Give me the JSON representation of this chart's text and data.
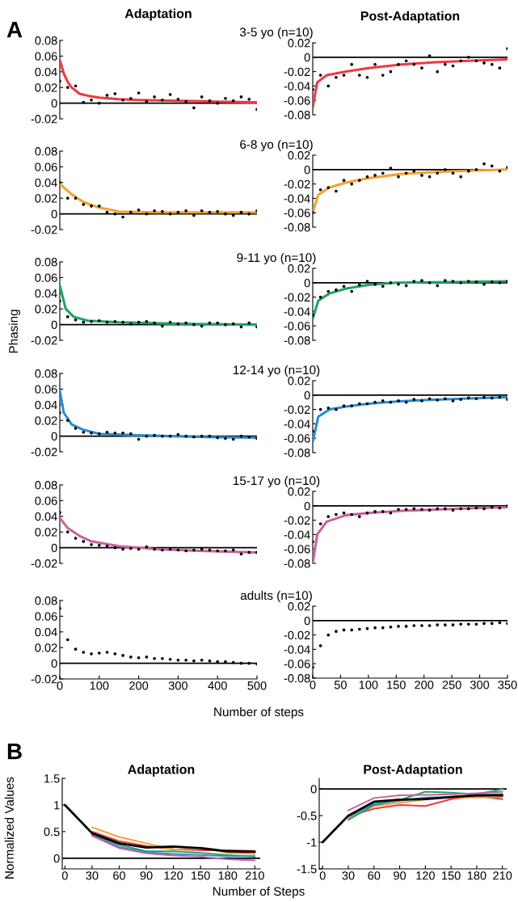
{
  "chart_data": [
    {
      "type": "scatter",
      "title": "Adaptation",
      "annotations": [
        "A"
      ],
      "xlim": [
        0,
        500
      ],
      "ylim": [
        -0.02,
        0.08
      ],
      "yticks": [
        -0.02,
        0,
        0.02,
        0.04,
        0.06,
        0.08
      ],
      "tick_labels": "y",
      "ref_lines": [
        {
          "axis": "y",
          "value": 0,
          "color": "#000000"
        }
      ],
      "series": [
        {
          "type": "line",
          "color": "#ee3a43",
          "x": [
            0,
            10,
            20,
            30,
            50,
            75,
            100,
            150,
            200,
            300,
            400,
            500
          ],
          "values": [
            0.055,
            0.038,
            0.027,
            0.02,
            0.012,
            0.009,
            0.007,
            0.005,
            0.004,
            0.003,
            0.002,
            0.001
          ]
        },
        {
          "type": "scatter",
          "color": "#000000",
          "x": [
            0,
            20,
            40,
            60,
            80,
            100,
            120,
            140,
            160,
            180,
            200,
            220,
            240,
            260,
            280,
            300,
            320,
            340,
            360,
            380,
            400,
            420,
            440,
            460,
            480,
            500
          ],
          "values": [
            0.028,
            0.02,
            0.022,
            0.001,
            0.004,
            0.0,
            0.01,
            0.012,
            0.004,
            0.006,
            0.013,
            0.002,
            0.008,
            0.004,
            0.011,
            0.005,
            0.002,
            -0.006,
            0.008,
            0.003,
            0.0,
            0.006,
            0.003,
            0.008,
            0.005,
            -0.008
          ]
        }
      ]
    },
    {
      "type": "scatter",
      "title": "Post-Adaptation",
      "subtitle": "3-5 yo (n=10)",
      "xlim": [
        0,
        350
      ],
      "ylim": [
        -0.08,
        0.02
      ],
      "yticks": [
        -0.08,
        -0.06,
        -0.04,
        -0.02,
        0,
        0.02
      ],
      "tick_labels": "y",
      "ref_lines": [
        {
          "axis": "y",
          "value": 0,
          "color": "#000000"
        }
      ],
      "series": [
        {
          "type": "line",
          "color": "#ee3a43",
          "x": [
            0,
            8,
            25,
            60,
            100,
            160,
            220,
            280,
            350
          ],
          "values": [
            -0.07,
            -0.035,
            -0.025,
            -0.02,
            -0.015,
            -0.01,
            -0.007,
            -0.005,
            -0.003
          ]
        },
        {
          "type": "scatter",
          "color": "#000000",
          "x": [
            0,
            14,
            28,
            42,
            56,
            70,
            84,
            98,
            112,
            126,
            140,
            154,
            168,
            182,
            196,
            210,
            224,
            238,
            252,
            266,
            280,
            294,
            308,
            322,
            336,
            350
          ],
          "values": [
            -0.045,
            -0.025,
            -0.04,
            -0.028,
            -0.025,
            -0.01,
            -0.025,
            -0.028,
            -0.01,
            -0.025,
            -0.02,
            -0.01,
            -0.005,
            -0.01,
            -0.015,
            0.002,
            -0.02,
            -0.01,
            -0.012,
            -0.005,
            0.0,
            -0.005,
            -0.008,
            -0.01,
            -0.015,
            0.012
          ]
        }
      ]
    },
    {
      "type": "scatter",
      "xlim": [
        0,
        500
      ],
      "ylim": [
        -0.02,
        0.08
      ],
      "yticks": [
        -0.02,
        0,
        0.02,
        0.04,
        0.06,
        0.08
      ],
      "tick_labels": "y",
      "ref_lines": [
        {
          "axis": "y",
          "value": 0,
          "color": "#000000"
        }
      ],
      "series": [
        {
          "type": "line",
          "color": "#f5a031",
          "x": [
            0,
            30,
            60,
            100,
            150,
            250,
            500
          ],
          "values": [
            0.038,
            0.025,
            0.015,
            0.008,
            0.003,
            0.002,
            0.002
          ]
        },
        {
          "type": "scatter",
          "color": "#000000",
          "x": [
            0,
            20,
            40,
            60,
            80,
            100,
            120,
            140,
            160,
            180,
            200,
            220,
            240,
            260,
            280,
            300,
            320,
            340,
            360,
            380,
            400,
            420,
            440,
            460,
            480,
            500
          ],
          "values": [
            0.04,
            0.02,
            0.02,
            0.012,
            0.01,
            0.01,
            0.002,
            0.0,
            -0.004,
            0.002,
            0.005,
            0.0,
            0.004,
            0.003,
            0.0,
            0.002,
            0.004,
            -0.002,
            0.004,
            0.002,
            0.003,
            0.0,
            -0.002,
            0.002,
            0.0,
            0.004
          ]
        }
      ]
    },
    {
      "type": "scatter",
      "subtitle": "6-8 yo (n=10)",
      "xlim": [
        0,
        350
      ],
      "ylim": [
        -0.08,
        0.02
      ],
      "yticks": [
        -0.08,
        -0.06,
        -0.04,
        -0.02,
        0,
        0.02
      ],
      "tick_labels": "y",
      "ref_lines": [
        {
          "axis": "y",
          "value": 0,
          "color": "#000000"
        }
      ],
      "series": [
        {
          "type": "line",
          "color": "#f5a031",
          "x": [
            0,
            10,
            30,
            60,
            100,
            160,
            230,
            300,
            350
          ],
          "values": [
            -0.06,
            -0.035,
            -0.025,
            -0.018,
            -0.012,
            -0.006,
            -0.003,
            -0.001,
            0
          ]
        },
        {
          "type": "scatter",
          "color": "#000000",
          "x": [
            0,
            14,
            28,
            42,
            56,
            70,
            84,
            98,
            112,
            126,
            140,
            154,
            168,
            182,
            196,
            210,
            224,
            238,
            252,
            266,
            280,
            294,
            308,
            322,
            336,
            350
          ],
          "values": [
            -0.06,
            -0.028,
            -0.025,
            -0.03,
            -0.015,
            -0.02,
            -0.015,
            -0.01,
            -0.008,
            -0.005,
            0.002,
            -0.01,
            -0.005,
            -0.002,
            -0.008,
            -0.01,
            -0.005,
            0.0,
            -0.005,
            -0.01,
            -0.002,
            0.0,
            0.008,
            0.005,
            -0.002,
            0.003
          ]
        }
      ]
    },
    {
      "type": "scatter",
      "xlim": [
        0,
        500
      ],
      "ylim": [
        -0.02,
        0.08
      ],
      "yticks": [
        -0.02,
        0,
        0.02,
        0.04,
        0.06,
        0.08
      ],
      "tick_labels": "y",
      "ref_lines": [
        {
          "axis": "y",
          "value": 0,
          "color": "#000000"
        }
      ],
      "series": [
        {
          "type": "line",
          "color": "#1ea462",
          "x": [
            0,
            15,
            35,
            70,
            150,
            300,
            500
          ],
          "values": [
            0.05,
            0.02,
            0.01,
            0.005,
            0.003,
            0.001,
            0
          ]
        },
        {
          "type": "scatter",
          "color": "#000000",
          "x": [
            0,
            20,
            40,
            60,
            80,
            100,
            120,
            140,
            160,
            180,
            200,
            220,
            240,
            260,
            280,
            300,
            320,
            340,
            360,
            380,
            400,
            420,
            440,
            460,
            480,
            500
          ],
          "values": [
            0.03,
            0.01,
            0.006,
            0.003,
            0.004,
            0.005,
            0.003,
            0.004,
            0.003,
            0.001,
            0.003,
            0.004,
            0.002,
            -0.002,
            0.003,
            0.001,
            0.002,
            0.0,
            -0.002,
            0.002,
            0.002,
            0.0,
            0.001,
            -0.003,
            0.002,
            -0.003
          ]
        }
      ]
    },
    {
      "type": "scatter",
      "subtitle": "9-11 yo (n=10)",
      "xlim": [
        0,
        350
      ],
      "ylim": [
        -0.08,
        0.02
      ],
      "yticks": [
        -0.08,
        -0.06,
        -0.04,
        -0.02,
        0,
        0.02
      ],
      "tick_labels": "y",
      "ref_lines": [
        {
          "axis": "y",
          "value": 0,
          "color": "#000000"
        }
      ],
      "series": [
        {
          "type": "line",
          "color": "#1ea462",
          "x": [
            0,
            10,
            30,
            60,
            100,
            150,
            250,
            350
          ],
          "values": [
            -0.05,
            -0.025,
            -0.015,
            -0.008,
            -0.003,
            0,
            0.001,
            0.002
          ]
        },
        {
          "type": "scatter",
          "color": "#000000",
          "x": [
            0,
            14,
            28,
            42,
            56,
            70,
            84,
            98,
            112,
            126,
            140,
            154,
            168,
            182,
            196,
            210,
            224,
            238,
            252,
            266,
            280,
            294,
            308,
            322,
            336,
            350
          ],
          "values": [
            -0.045,
            -0.02,
            -0.012,
            -0.01,
            -0.005,
            -0.012,
            -0.003,
            0.002,
            -0.002,
            -0.005,
            0.0,
            -0.002,
            -0.004,
            0.002,
            0.003,
            0.0,
            -0.004,
            0.003,
            0.002,
            0.0,
            0.002,
            0.001,
            -0.002,
            0.001,
            0.0,
            0.002
          ]
        }
      ]
    },
    {
      "type": "scatter",
      "ylabel": "Phasing",
      "xlim": [
        0,
        500
      ],
      "ylim": [
        -0.02,
        0.08
      ],
      "yticks": [
        -0.02,
        0,
        0.02,
        0.04,
        0.06,
        0.08
      ],
      "tick_labels": "y",
      "ref_lines": [
        {
          "axis": "y",
          "value": 0,
          "color": "#000000"
        }
      ],
      "series": [
        {
          "type": "line",
          "color": "#2a8ccc",
          "x": [
            0,
            10,
            30,
            60,
            100,
            200,
            350,
            500
          ],
          "values": [
            0.058,
            0.03,
            0.015,
            0.008,
            0.003,
            0.001,
            -0.001,
            -0.002
          ]
        },
        {
          "type": "scatter",
          "color": "#000000",
          "x": [
            0,
            20,
            40,
            60,
            80,
            100,
            120,
            140,
            160,
            180,
            200,
            220,
            240,
            260,
            280,
            300,
            320,
            340,
            360,
            380,
            400,
            420,
            440,
            460,
            480,
            500
          ],
          "values": [
            0.03,
            0.02,
            0.01,
            0.005,
            0.004,
            0.003,
            0.005,
            0.004,
            0.004,
            0.003,
            -0.004,
            0.0,
            0.001,
            0.0,
            0.0,
            0.002,
            0.0,
            -0.001,
            0.0,
            0.0,
            -0.002,
            -0.003,
            -0.004,
            0.0,
            -0.001,
            -0.003
          ]
        }
      ]
    },
    {
      "type": "scatter",
      "subtitle": "12-14 yo (n=10)",
      "xlim": [
        0,
        350
      ],
      "ylim": [
        -0.08,
        0.02
      ],
      "yticks": [
        -0.08,
        -0.06,
        -0.04,
        -0.02,
        0,
        0.02
      ],
      "tick_labels": "y",
      "ref_lines": [
        {
          "axis": "y",
          "value": 0,
          "color": "#000000"
        }
      ],
      "series": [
        {
          "type": "line",
          "color": "#2a8ccc",
          "x": [
            0,
            10,
            30,
            60,
            100,
            150,
            200,
            270,
            350
          ],
          "values": [
            -0.065,
            -0.03,
            -0.02,
            -0.016,
            -0.012,
            -0.009,
            -0.007,
            -0.005,
            -0.003
          ]
        },
        {
          "type": "scatter",
          "color": "#000000",
          "x": [
            0,
            14,
            28,
            42,
            56,
            70,
            84,
            98,
            112,
            126,
            140,
            154,
            168,
            182,
            196,
            210,
            224,
            238,
            252,
            266,
            280,
            294,
            308,
            322,
            336,
            350
          ],
          "values": [
            -0.05,
            -0.02,
            -0.018,
            -0.02,
            -0.015,
            -0.015,
            -0.012,
            -0.012,
            -0.01,
            -0.008,
            -0.01,
            -0.008,
            -0.01,
            -0.006,
            -0.008,
            -0.005,
            -0.007,
            -0.005,
            -0.008,
            -0.006,
            -0.004,
            -0.005,
            -0.003,
            -0.004,
            -0.003,
            -0.006
          ]
        }
      ]
    },
    {
      "type": "scatter",
      "xlim": [
        0,
        500
      ],
      "ylim": [
        -0.02,
        0.08
      ],
      "yticks": [
        -0.02,
        0,
        0.02,
        0.04,
        0.06,
        0.08
      ],
      "tick_labels": "y",
      "ref_lines": [
        {
          "axis": "y",
          "value": 0,
          "color": "#000000"
        }
      ],
      "series": [
        {
          "type": "line",
          "color": "#c9629c",
          "x": [
            0,
            20,
            50,
            80,
            150,
            250,
            350,
            500
          ],
          "values": [
            0.038,
            0.025,
            0.015,
            0.008,
            0.002,
            -0.002,
            -0.004,
            -0.006
          ]
        },
        {
          "type": "scatter",
          "color": "#000000",
          "x": [
            0,
            20,
            40,
            60,
            80,
            100,
            120,
            140,
            160,
            180,
            200,
            220,
            240,
            260,
            280,
            300,
            320,
            340,
            360,
            380,
            400,
            420,
            440,
            460,
            480,
            500
          ],
          "values": [
            0.045,
            0.02,
            0.012,
            0.008,
            0.004,
            0.003,
            0.002,
            0.0,
            -0.002,
            -0.001,
            -0.002,
            0.001,
            -0.002,
            -0.003,
            -0.002,
            -0.003,
            -0.004,
            -0.003,
            -0.002,
            -0.003,
            -0.004,
            -0.004,
            -0.003,
            -0.008,
            -0.006,
            -0.006
          ]
        }
      ]
    },
    {
      "type": "scatter",
      "subtitle": "15-17 yo (n=10)",
      "xlim": [
        0,
        350
      ],
      "ylim": [
        -0.08,
        0.02
      ],
      "yticks": [
        -0.08,
        -0.06,
        -0.04,
        -0.02,
        0,
        0.02
      ],
      "tick_labels": "y",
      "ref_lines": [
        {
          "axis": "y",
          "value": 0,
          "color": "#000000"
        }
      ],
      "series": [
        {
          "type": "line",
          "color": "#c9629c",
          "x": [
            0,
            8,
            25,
            60,
            100,
            160,
            230,
            300,
            350
          ],
          "values": [
            -0.08,
            -0.04,
            -0.022,
            -0.013,
            -0.01,
            -0.007,
            -0.005,
            -0.003,
            -0.002
          ]
        },
        {
          "type": "scatter",
          "color": "#000000",
          "x": [
            0,
            14,
            28,
            42,
            56,
            70,
            84,
            98,
            112,
            126,
            140,
            154,
            168,
            182,
            196,
            210,
            224,
            238,
            252,
            266,
            280,
            294,
            308,
            322,
            336,
            350
          ],
          "values": [
            -0.05,
            -0.025,
            -0.015,
            -0.012,
            -0.01,
            -0.012,
            -0.015,
            -0.01,
            -0.008,
            -0.008,
            -0.01,
            -0.005,
            -0.005,
            -0.004,
            -0.005,
            -0.006,
            -0.004,
            -0.004,
            -0.006,
            -0.004,
            -0.004,
            -0.003,
            -0.004,
            -0.002,
            -0.003,
            0.0
          ]
        }
      ]
    },
    {
      "type": "scatter",
      "xlabel": "Number of steps",
      "xlim": [
        0,
        500
      ],
      "xticks": [
        0,
        100,
        200,
        300,
        400,
        500
      ],
      "ylim": [
        -0.02,
        0.08
      ],
      "yticks": [
        -0.02,
        0,
        0.02,
        0.04,
        0.06,
        0.08
      ],
      "ref_lines": [
        {
          "axis": "y",
          "value": 0,
          "color": "#000000"
        }
      ],
      "series": [
        {
          "type": "scatter",
          "color": "#000000",
          "x": [
            0,
            20,
            40,
            60,
            80,
            100,
            120,
            140,
            160,
            180,
            200,
            220,
            240,
            260,
            280,
            300,
            320,
            340,
            360,
            380,
            400,
            420,
            440,
            460,
            480,
            500
          ],
          "values": [
            0.07,
            0.03,
            0.018,
            0.014,
            0.012,
            0.013,
            0.014,
            0.012,
            0.01,
            0.008,
            0.007,
            0.008,
            0.006,
            0.006,
            0.005,
            0.004,
            0.004,
            0.003,
            0.004,
            0.003,
            0.002,
            0.002,
            0.001,
            0.0,
            0.0,
            -0.001
          ]
        }
      ]
    },
    {
      "type": "scatter",
      "subtitle": "adults (n=10)",
      "xlim": [
        0,
        350
      ],
      "xticks": [
        0,
        50,
        100,
        150,
        200,
        250,
        300,
        350
      ],
      "ylim": [
        -0.08,
        0.02
      ],
      "yticks": [
        -0.08,
        -0.06,
        -0.04,
        -0.02,
        0,
        0.02
      ],
      "ref_lines": [
        {
          "axis": "y",
          "value": 0,
          "color": "#000000"
        }
      ],
      "series": [
        {
          "type": "scatter",
          "color": "#000000",
          "x": [
            0,
            14,
            28,
            42,
            56,
            70,
            84,
            98,
            112,
            126,
            140,
            154,
            168,
            182,
            196,
            210,
            224,
            238,
            252,
            266,
            280,
            294,
            308,
            322,
            336,
            350
          ],
          "values": [
            -0.065,
            -0.035,
            -0.02,
            -0.015,
            -0.013,
            -0.013,
            -0.012,
            -0.011,
            -0.01,
            -0.01,
            -0.009,
            -0.008,
            -0.008,
            -0.007,
            -0.007,
            -0.007,
            -0.006,
            -0.006,
            -0.006,
            -0.005,
            -0.005,
            -0.005,
            -0.004,
            -0.004,
            -0.003,
            -0.004
          ]
        }
      ]
    },
    {
      "type": "line",
      "title": "Adaptation",
      "annotations": [
        "B"
      ],
      "xlabel": "Number of Steps",
      "ylabel": "Normalized Values",
      "x": [
        0,
        30,
        60,
        90,
        120,
        150,
        180,
        210
      ],
      "xlim": [
        -3,
        216
      ],
      "xticks": [
        0,
        30,
        60,
        90,
        120,
        150,
        180,
        210
      ],
      "ylim": [
        -0.2,
        1.5
      ],
      "yticks": [
        0,
        0.5,
        1,
        1.5
      ],
      "ref_lines": [
        {
          "axis": "y",
          "value": 0,
          "color": "#000000"
        }
      ],
      "series": [
        {
          "color": "#ee3a43",
          "values": [
            null,
            0.5,
            0.32,
            0.23,
            0.17,
            0.15,
            0.15,
            0.14
          ]
        },
        {
          "color": "#f5a031",
          "values": [
            null,
            0.58,
            0.4,
            0.28,
            0.16,
            0.2,
            0.1,
            0.08
          ]
        },
        {
          "color": "#1ea462",
          "values": [
            null,
            0.45,
            0.25,
            0.13,
            0.13,
            0.1,
            0.06,
            0.03
          ]
        },
        {
          "color": "#2a8ccc",
          "values": [
            null,
            0.44,
            0.21,
            0.11,
            0.08,
            0.06,
            0.04,
            0.04
          ]
        },
        {
          "color": "#c9629c",
          "values": [
            null,
            0.42,
            0.19,
            0.09,
            0.05,
            0.03,
            -0.02,
            -0.04
          ]
        },
        {
          "color": "#000000",
          "values": [
            1,
            0.47,
            0.28,
            0.2,
            0.22,
            0.19,
            0.13,
            0.12
          ]
        }
      ]
    },
    {
      "type": "line",
      "title": "Post-Adaptation",
      "x": [
        0,
        30,
        60,
        90,
        120,
        150,
        180,
        210
      ],
      "xlim": [
        -4,
        215
      ],
      "xticks": [
        0,
        30,
        60,
        90,
        120,
        150,
        180,
        210
      ],
      "ylim": [
        -1.5,
        0.2
      ],
      "yticks": [
        -1.5,
        -1,
        -0.5,
        0
      ],
      "ref_lines": [
        {
          "axis": "y",
          "value": 0,
          "color": "#000000"
        }
      ],
      "series": [
        {
          "color": "#ee3a43",
          "values": [
            null,
            -0.52,
            -0.37,
            -0.3,
            -0.32,
            -0.19,
            -0.13,
            -0.19
          ]
        },
        {
          "color": "#f5a031",
          "values": [
            null,
            -0.55,
            -0.32,
            -0.26,
            -0.2,
            -0.16,
            -0.16,
            -0.15
          ]
        },
        {
          "color": "#1ea462",
          "values": [
            null,
            -0.58,
            -0.3,
            -0.21,
            -0.05,
            -0.07,
            -0.1,
            0.0
          ]
        },
        {
          "color": "#2a8ccc",
          "values": [
            null,
            -0.52,
            -0.28,
            -0.22,
            -0.16,
            -0.15,
            -0.11,
            -0.09
          ]
        },
        {
          "color": "#c9629c",
          "values": [
            null,
            -0.4,
            -0.17,
            -0.12,
            -0.11,
            -0.1,
            -0.08,
            -0.05
          ]
        },
        {
          "color": "#000000",
          "values": [
            -1,
            -0.5,
            -0.24,
            -0.2,
            -0.19,
            -0.15,
            -0.12,
            -0.12
          ]
        }
      ]
    }
  ]
}
